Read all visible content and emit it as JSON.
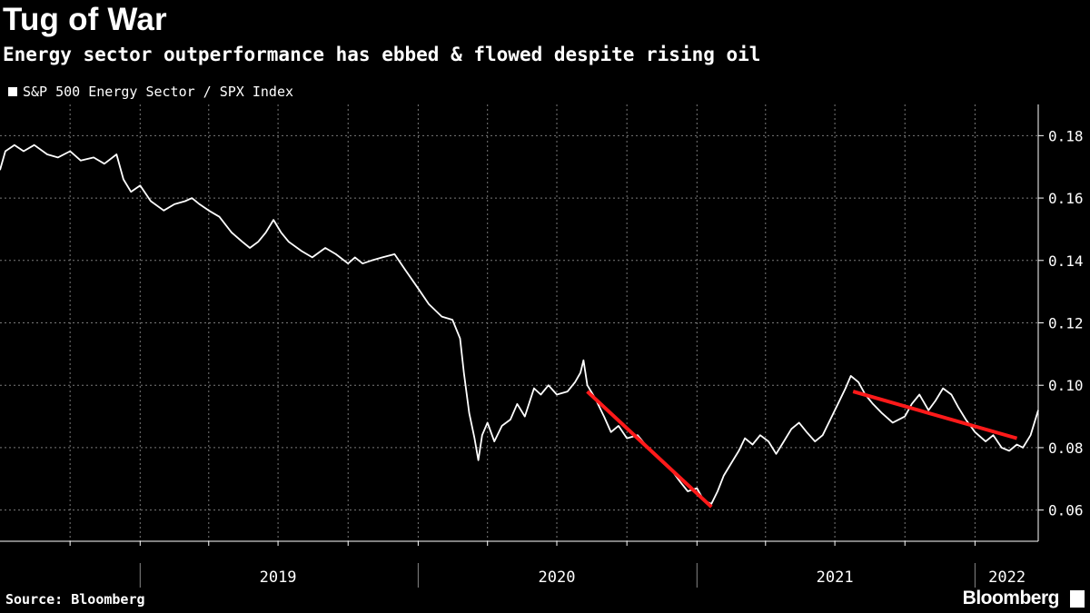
{
  "header": {
    "title": "Tug of War",
    "subtitle": "Energy sector outperformance has ebbed & flowed despite rising oil"
  },
  "footer": {
    "source": "Source: Bloomberg",
    "brand": "Bloomberg"
  },
  "colors": {
    "background": "#000000",
    "series": "#ffffff",
    "trend": "#ff1a1a",
    "grid": "#7a7a7a"
  },
  "chart_data": {
    "type": "line",
    "legend": [
      "S&P 500 Energy Sector / SPX Index"
    ],
    "ylim": [
      0.05,
      0.19
    ],
    "yticks": [
      0.06,
      0.08,
      0.1,
      0.12,
      0.14,
      0.16,
      0.18
    ],
    "ytick_labels": [
      "0.06",
      "0.08",
      "0.10",
      "0.12",
      "0.14",
      "0.16",
      "0.18"
    ],
    "xlim": [
      "2018-07-01",
      "2022-03-25"
    ],
    "year_labels": [
      "2019",
      "2020",
      "2021",
      "2022"
    ],
    "axis_side": "right",
    "grid": true,
    "series": [
      {
        "name": "S&P 500 Energy Sector / SPX Index",
        "points": [
          [
            "2018-07-01",
            0.169
          ],
          [
            "2018-07-08",
            0.175
          ],
          [
            "2018-07-20",
            0.177
          ],
          [
            "2018-08-01",
            0.175
          ],
          [
            "2018-08-15",
            0.177
          ],
          [
            "2018-09-01",
            0.174
          ],
          [
            "2018-09-15",
            0.173
          ],
          [
            "2018-10-01",
            0.175
          ],
          [
            "2018-10-15",
            0.172
          ],
          [
            "2018-11-01",
            0.173
          ],
          [
            "2018-11-15",
            0.171
          ],
          [
            "2018-12-01",
            0.174
          ],
          [
            "2018-12-10",
            0.166
          ],
          [
            "2018-12-20",
            0.162
          ],
          [
            "2019-01-01",
            0.164
          ],
          [
            "2019-01-15",
            0.159
          ],
          [
            "2019-02-01",
            0.156
          ],
          [
            "2019-02-15",
            0.158
          ],
          [
            "2019-03-01",
            0.159
          ],
          [
            "2019-03-10",
            0.16
          ],
          [
            "2019-03-20",
            0.158
          ],
          [
            "2019-04-01",
            0.156
          ],
          [
            "2019-04-15",
            0.154
          ],
          [
            "2019-05-01",
            0.149
          ],
          [
            "2019-05-15",
            0.146
          ],
          [
            "2019-05-25",
            0.144
          ],
          [
            "2019-06-05",
            0.146
          ],
          [
            "2019-06-15",
            0.149
          ],
          [
            "2019-06-25",
            0.153
          ],
          [
            "2019-07-05",
            0.149
          ],
          [
            "2019-07-15",
            0.146
          ],
          [
            "2019-08-01",
            0.143
          ],
          [
            "2019-08-15",
            0.141
          ],
          [
            "2019-09-01",
            0.144
          ],
          [
            "2019-09-15",
            0.142
          ],
          [
            "2019-10-01",
            0.139
          ],
          [
            "2019-10-10",
            0.141
          ],
          [
            "2019-10-20",
            0.139
          ],
          [
            "2019-11-01",
            0.14
          ],
          [
            "2019-11-15",
            0.141
          ],
          [
            "2019-12-01",
            0.142
          ],
          [
            "2019-12-15",
            0.137
          ],
          [
            "2020-01-01",
            0.131
          ],
          [
            "2020-01-15",
            0.126
          ],
          [
            "2020-02-01",
            0.122
          ],
          [
            "2020-02-15",
            0.121
          ],
          [
            "2020-02-25",
            0.115
          ],
          [
            "2020-03-01",
            0.104
          ],
          [
            "2020-03-08",
            0.091
          ],
          [
            "2020-03-15",
            0.083
          ],
          [
            "2020-03-20",
            0.076
          ],
          [
            "2020-03-25",
            0.084
          ],
          [
            "2020-04-01",
            0.088
          ],
          [
            "2020-04-10",
            0.082
          ],
          [
            "2020-04-20",
            0.087
          ],
          [
            "2020-05-01",
            0.089
          ],
          [
            "2020-05-10",
            0.094
          ],
          [
            "2020-05-20",
            0.09
          ],
          [
            "2020-06-01",
            0.099
          ],
          [
            "2020-06-10",
            0.097
          ],
          [
            "2020-06-20",
            0.1
          ],
          [
            "2020-07-01",
            0.097
          ],
          [
            "2020-07-15",
            0.098
          ],
          [
            "2020-07-25",
            0.101
          ],
          [
            "2020-08-01",
            0.104
          ],
          [
            "2020-08-05",
            0.108
          ],
          [
            "2020-08-10",
            0.1
          ],
          [
            "2020-08-20",
            0.096
          ],
          [
            "2020-09-01",
            0.09
          ],
          [
            "2020-09-10",
            0.085
          ],
          [
            "2020-09-20",
            0.087
          ],
          [
            "2020-10-01",
            0.083
          ],
          [
            "2020-10-15",
            0.084
          ],
          [
            "2020-11-01",
            0.079
          ],
          [
            "2020-11-15",
            0.076
          ],
          [
            "2020-12-01",
            0.072
          ],
          [
            "2020-12-10",
            0.069
          ],
          [
            "2020-12-20",
            0.066
          ],
          [
            "2021-01-01",
            0.067
          ],
          [
            "2021-01-10",
            0.063
          ],
          [
            "2021-01-20",
            0.062
          ],
          [
            "2021-01-28",
            0.066
          ],
          [
            "2021-02-05",
            0.071
          ],
          [
            "2021-02-15",
            0.075
          ],
          [
            "2021-02-25",
            0.079
          ],
          [
            "2021-03-05",
            0.083
          ],
          [
            "2021-03-15",
            0.081
          ],
          [
            "2021-03-25",
            0.084
          ],
          [
            "2021-04-05",
            0.082
          ],
          [
            "2021-04-15",
            0.078
          ],
          [
            "2021-04-25",
            0.082
          ],
          [
            "2021-05-05",
            0.086
          ],
          [
            "2021-05-15",
            0.088
          ],
          [
            "2021-05-25",
            0.085
          ],
          [
            "2021-06-05",
            0.082
          ],
          [
            "2021-06-15",
            0.084
          ],
          [
            "2021-06-25",
            0.089
          ],
          [
            "2021-07-05",
            0.094
          ],
          [
            "2021-07-15",
            0.099
          ],
          [
            "2021-07-22",
            0.103
          ],
          [
            "2021-08-01",
            0.101
          ],
          [
            "2021-08-10",
            0.097
          ],
          [
            "2021-08-20",
            0.094
          ],
          [
            "2021-09-01",
            0.091
          ],
          [
            "2021-09-15",
            0.088
          ],
          [
            "2021-10-01",
            0.09
          ],
          [
            "2021-10-10",
            0.094
          ],
          [
            "2021-10-20",
            0.097
          ],
          [
            "2021-11-01",
            0.092
          ],
          [
            "2021-11-10",
            0.095
          ],
          [
            "2021-11-20",
            0.099
          ],
          [
            "2021-12-01",
            0.097
          ],
          [
            "2021-12-10",
            0.093
          ],
          [
            "2021-12-20",
            0.089
          ],
          [
            "2022-01-01",
            0.085
          ],
          [
            "2022-01-15",
            0.082
          ],
          [
            "2022-01-25",
            0.084
          ],
          [
            "2022-02-05",
            0.08
          ],
          [
            "2022-02-15",
            0.079
          ],
          [
            "2022-02-25",
            0.081
          ],
          [
            "2022-03-05",
            0.08
          ],
          [
            "2022-03-15",
            0.084
          ],
          [
            "2022-03-25",
            0.092
          ]
        ]
      }
    ],
    "trend_lines": [
      {
        "start": [
          "2020-08-10",
          0.098
        ],
        "end": [
          "2021-01-20",
          0.061
        ]
      },
      {
        "start": [
          "2021-07-25",
          0.098
        ],
        "end": [
          "2022-02-25",
          0.083
        ]
      }
    ]
  }
}
